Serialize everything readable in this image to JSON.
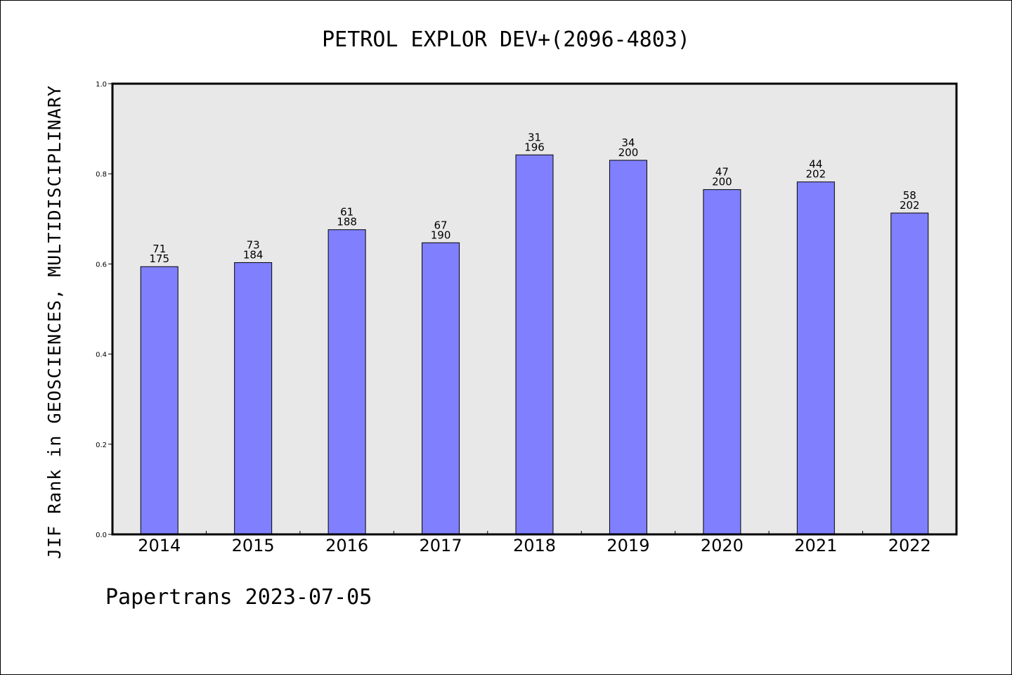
{
  "footer": {
    "credit": "Papertrans 2023-07-05"
  },
  "chart_data": {
    "type": "bar",
    "title": "PETROL EXPLOR DEV+(2096-4803)",
    "xlabel": "",
    "ylabel": "JIF Rank in GEOSCIENCES, MULTIDISCIPLINARY",
    "ylim": [
      0,
      1.0
    ],
    "yticks": [
      "0.0",
      "0.2",
      "0.4",
      "0.6",
      "0.8",
      "1.0"
    ],
    "categories": [
      "2014",
      "2015",
      "2016",
      "2017",
      "2018",
      "2019",
      "2020",
      "2021",
      "2022"
    ],
    "values": [
      0.594,
      0.603,
      0.676,
      0.647,
      0.842,
      0.83,
      0.765,
      0.782,
      0.713
    ],
    "rank": [
      71,
      73,
      61,
      67,
      31,
      34,
      47,
      44,
      58
    ],
    "total": [
      175,
      184,
      188,
      190,
      196,
      200,
      200,
      202,
      202
    ],
    "grid": false,
    "colors": {
      "bar_fill": "#8080ff",
      "bar_stroke": "#000000",
      "plot_background": "#e8e8e8",
      "axis": "#000000"
    }
  }
}
